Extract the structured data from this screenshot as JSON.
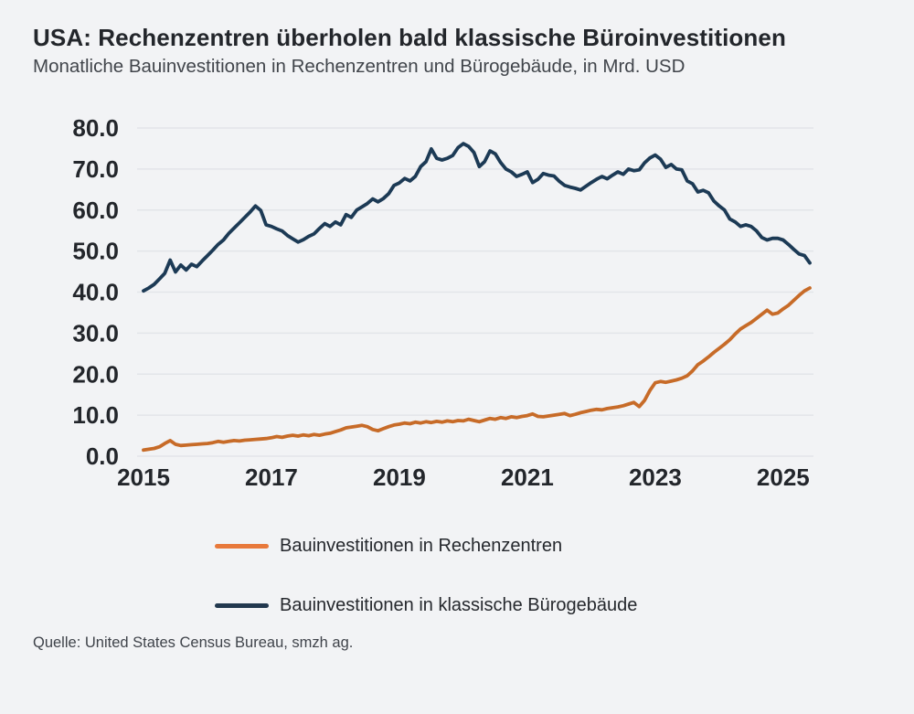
{
  "header": {
    "title": "USA: Rechenzentren überholen bald klassische Büroinvestitionen",
    "subtitle": "Monatliche Bauinvestitionen in Rechenzentren und Bürogebäude, in Mrd. USD"
  },
  "source": "Quelle: United States Census Bureau, smzh ag.",
  "colors": {
    "background": "#f2f3f5",
    "grid": "#e3e5e9",
    "axis_label": "#23262b",
    "rechenzentren_line": "#c76b28",
    "rechenzentren_legend_swatch": "#e8793b",
    "buerogebaeude_line": "#1c3a55",
    "buerogebaeude_legend_swatch": "#22384e"
  },
  "legend": {
    "items": [
      {
        "label": "Bauinvestitionen in Rechenzentren",
        "series": "rechenzentren"
      },
      {
        "label": "Bauinvestitionen in klassische Bürogebäude",
        "series": "buerogebaeude"
      }
    ]
  },
  "chart_data": {
    "type": "line",
    "title": "USA: Rechenzentren überholen bald klassische Büroinvestitionen",
    "subtitle": "Monatliche Bauinvestitionen in Rechenzentren und Bürogebäude, in Mrd. USD",
    "x_unit": "month",
    "x_start": "2015-01",
    "x_end": "2025-06",
    "x_tick_labels": [
      "2015",
      "2017",
      "2019",
      "2021",
      "2023",
      "2025"
    ],
    "y_tick_labels": [
      "0.0",
      "10.0",
      "20.0",
      "30.0",
      "40.0",
      "50.0",
      "60.0",
      "70.0",
      "80.0"
    ],
    "ylim": [
      0,
      80
    ],
    "y_step": 10,
    "grid": "horizontal",
    "legend_position": "bottom",
    "series": [
      {
        "name": "Bauinvestitionen in Rechenzentren",
        "color": "#c76b28",
        "values": [
          1.5,
          1.7,
          1.9,
          2.3,
          3.1,
          3.8,
          2.9,
          2.6,
          2.7,
          2.8,
          2.9,
          3.0,
          3.1,
          3.3,
          3.6,
          3.4,
          3.6,
          3.8,
          3.7,
          3.9,
          4.0,
          4.1,
          4.2,
          4.3,
          4.5,
          4.8,
          4.6,
          4.9,
          5.1,
          4.9,
          5.2,
          5.0,
          5.3,
          5.1,
          5.4,
          5.6,
          6.0,
          6.4,
          6.9,
          7.1,
          7.3,
          7.5,
          7.2,
          6.5,
          6.2,
          6.7,
          7.2,
          7.6,
          7.8,
          8.1,
          7.9,
          8.3,
          8.1,
          8.4,
          8.2,
          8.5,
          8.3,
          8.6,
          8.4,
          8.7,
          8.6,
          9.0,
          8.7,
          8.4,
          8.8,
          9.2,
          9.0,
          9.4,
          9.2,
          9.6,
          9.4,
          9.7,
          9.9,
          10.3,
          9.7,
          9.6,
          9.8,
          10.0,
          10.2,
          10.4,
          9.9,
          10.2,
          10.6,
          10.9,
          11.2,
          11.4,
          11.3,
          11.6,
          11.8,
          12.0,
          12.3,
          12.7,
          13.1,
          12.1,
          13.6,
          16.0,
          17.9,
          18.2,
          18.0,
          18.3,
          18.6,
          19.0,
          19.6,
          20.8,
          22.3,
          23.2,
          24.2,
          25.3,
          26.3,
          27.3,
          28.4,
          29.8,
          31.0,
          31.8,
          32.6,
          33.6,
          34.6,
          35.6,
          34.6,
          34.9,
          35.9,
          36.8,
          38.0,
          39.2,
          40.3,
          41.0
        ]
      },
      {
        "name": "Bauinvestitionen in klassische Bürogebäude",
        "color": "#1c3a55",
        "values": [
          40.3,
          41.0,
          41.9,
          43.2,
          44.6,
          47.8,
          44.9,
          46.6,
          45.4,
          46.8,
          46.2,
          47.6,
          48.9,
          50.2,
          51.6,
          52.7,
          54.3,
          55.6,
          56.9,
          58.2,
          59.5,
          61.0,
          59.9,
          56.4,
          56.0,
          55.4,
          54.9,
          53.8,
          53.0,
          52.2,
          52.8,
          53.6,
          54.2,
          55.5,
          56.7,
          56.0,
          57.1,
          56.4,
          58.9,
          58.2,
          60.0,
          60.8,
          61.6,
          62.7,
          62.0,
          62.8,
          64.0,
          66.0,
          66.6,
          67.7,
          67.1,
          68.2,
          70.6,
          71.8,
          74.9,
          72.6,
          72.2,
          72.6,
          73.3,
          75.2,
          76.2,
          75.5,
          74.0,
          70.6,
          71.8,
          74.4,
          73.7,
          71.6,
          70.0,
          69.3,
          68.2,
          68.7,
          69.3,
          66.7,
          67.5,
          68.9,
          68.5,
          68.3,
          67.0,
          66.0,
          65.6,
          65.3,
          64.9,
          65.8,
          66.7,
          67.5,
          68.2,
          67.6,
          68.5,
          69.3,
          68.7,
          70.0,
          69.6,
          69.8,
          71.5,
          72.7,
          73.4,
          72.4,
          70.4,
          71.1,
          70.0,
          69.8,
          67.1,
          66.4,
          64.4,
          64.8,
          64.2,
          62.2,
          61.0,
          60.0,
          57.8,
          57.1,
          56.0,
          56.4,
          56.0,
          54.9,
          53.3,
          52.7,
          53.1,
          53.1,
          52.7,
          51.6,
          50.4,
          49.3,
          48.9,
          47.1
        ]
      }
    ]
  }
}
